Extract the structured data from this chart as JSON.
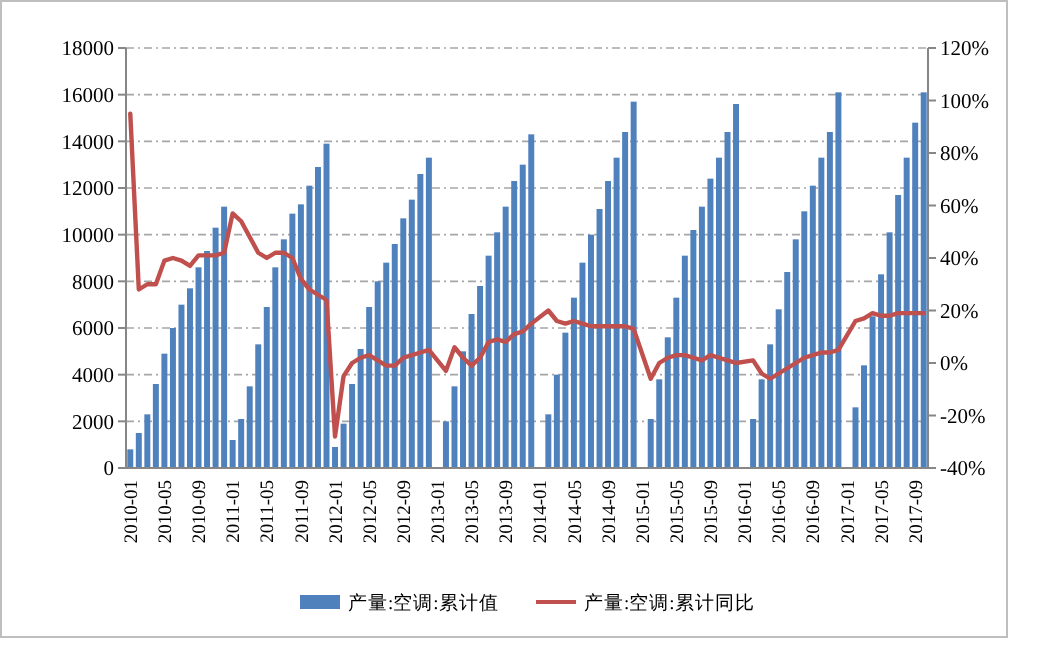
{
  "chart_data": {
    "type": "bar",
    "categories": [
      "2010-01",
      null,
      null,
      null,
      "2010-05",
      null,
      null,
      null,
      "2010-09",
      null,
      null,
      null,
      "2011-01",
      null,
      null,
      null,
      "2011-05",
      null,
      null,
      null,
      "2011-09",
      null,
      null,
      null,
      "2012-01",
      null,
      null,
      null,
      "2012-05",
      null,
      null,
      null,
      "2012-09",
      null,
      null,
      null,
      "2013-01",
      null,
      null,
      null,
      "2013-05",
      null,
      null,
      null,
      "2013-09",
      null,
      null,
      null,
      "2014-01",
      null,
      null,
      null,
      "2014-05",
      null,
      null,
      null,
      "2014-09",
      null,
      null,
      null,
      "2015-01",
      null,
      null,
      null,
      "2015-05",
      null,
      null,
      null,
      "2015-09",
      null,
      null,
      null,
      "2016-01",
      null,
      null,
      null,
      "2016-05",
      null,
      null,
      null,
      "2016-09",
      null,
      null,
      null,
      "2017-01",
      null,
      null,
      null,
      "2017-05",
      null,
      null,
      null,
      "2017-09",
      null
    ],
    "series": [
      {
        "name": "产量:空调:累计值",
        "color": "#4f81bd",
        "values": [
          800,
          1500,
          2300,
          3600,
          4900,
          6000,
          7000,
          7700,
          8600,
          9300,
          10300,
          11200,
          1200,
          2100,
          3500,
          5300,
          6900,
          8600,
          9800,
          10900,
          11300,
          12100,
          12900,
          13900,
          900,
          1900,
          3600,
          5100,
          6900,
          8000,
          8800,
          9600,
          10700,
          11500,
          12600,
          13300,
          null,
          2000,
          3500,
          5000,
          6600,
          7800,
          9100,
          10100,
          11200,
          12300,
          13000,
          14300,
          null,
          2300,
          4000,
          5800,
          7300,
          8800,
          10000,
          11100,
          12300,
          13300,
          14400,
          15700,
          null,
          2100,
          3800,
          5600,
          7300,
          9100,
          10200,
          11200,
          12400,
          13300,
          14400,
          15600,
          null,
          2100,
          3800,
          5300,
          6800,
          8400,
          9800,
          11000,
          12100,
          13300,
          14400,
          16100,
          null,
          2600,
          4400,
          6500,
          8300,
          10100,
          11700,
          13300,
          14800,
          16100
        ]
      },
      {
        "name": "产量:空调:累计同比",
        "type": "line",
        "axis": "y2",
        "color": "#c0504d",
        "values": [
          95,
          28,
          30,
          30,
          39,
          40,
          39,
          37,
          41,
          41,
          41,
          42,
          57,
          54,
          48,
          42,
          40,
          42,
          42,
          40,
          32,
          28,
          26,
          24,
          -28,
          -5,
          0,
          2,
          3,
          1,
          -1,
          -1,
          2,
          3,
          4,
          5,
          null,
          -3,
          6,
          2,
          -1,
          2,
          8,
          9,
          8,
          11,
          12,
          15,
          null,
          20,
          16,
          15,
          16,
          15,
          14,
          14,
          14,
          14,
          14,
          13,
          null,
          -6,
          0,
          2,
          3,
          3,
          2,
          1,
          3,
          2,
          1,
          0,
          null,
          1,
          -4,
          -6,
          -4,
          -2,
          0,
          2,
          3,
          4,
          4,
          5,
          null,
          16,
          17,
          19,
          18,
          18,
          19,
          19,
          19,
          19
        ]
      }
    ],
    "ylim": [
      0,
      18000
    ],
    "yticks": [
      0,
      2000,
      4000,
      6000,
      8000,
      10000,
      12000,
      14000,
      16000,
      18000
    ],
    "y2lim": [
      -40,
      120
    ],
    "y2ticks": [
      {
        "value": -40,
        "label": "-40%"
      },
      {
        "value": -20,
        "label": "-20%"
      },
      {
        "value": 0,
        "label": "0%"
      },
      {
        "value": 20,
        "label": "20%"
      },
      {
        "value": 40,
        "label": "40%"
      },
      {
        "value": 60,
        "label": "60%"
      },
      {
        "value": 80,
        "label": "80%"
      },
      {
        "value": 100,
        "label": "100%"
      },
      {
        "value": 120,
        "label": "120%"
      }
    ],
    "grid": "y",
    "legend": "bottom",
    "line_style": "solid",
    "marker": "none"
  }
}
